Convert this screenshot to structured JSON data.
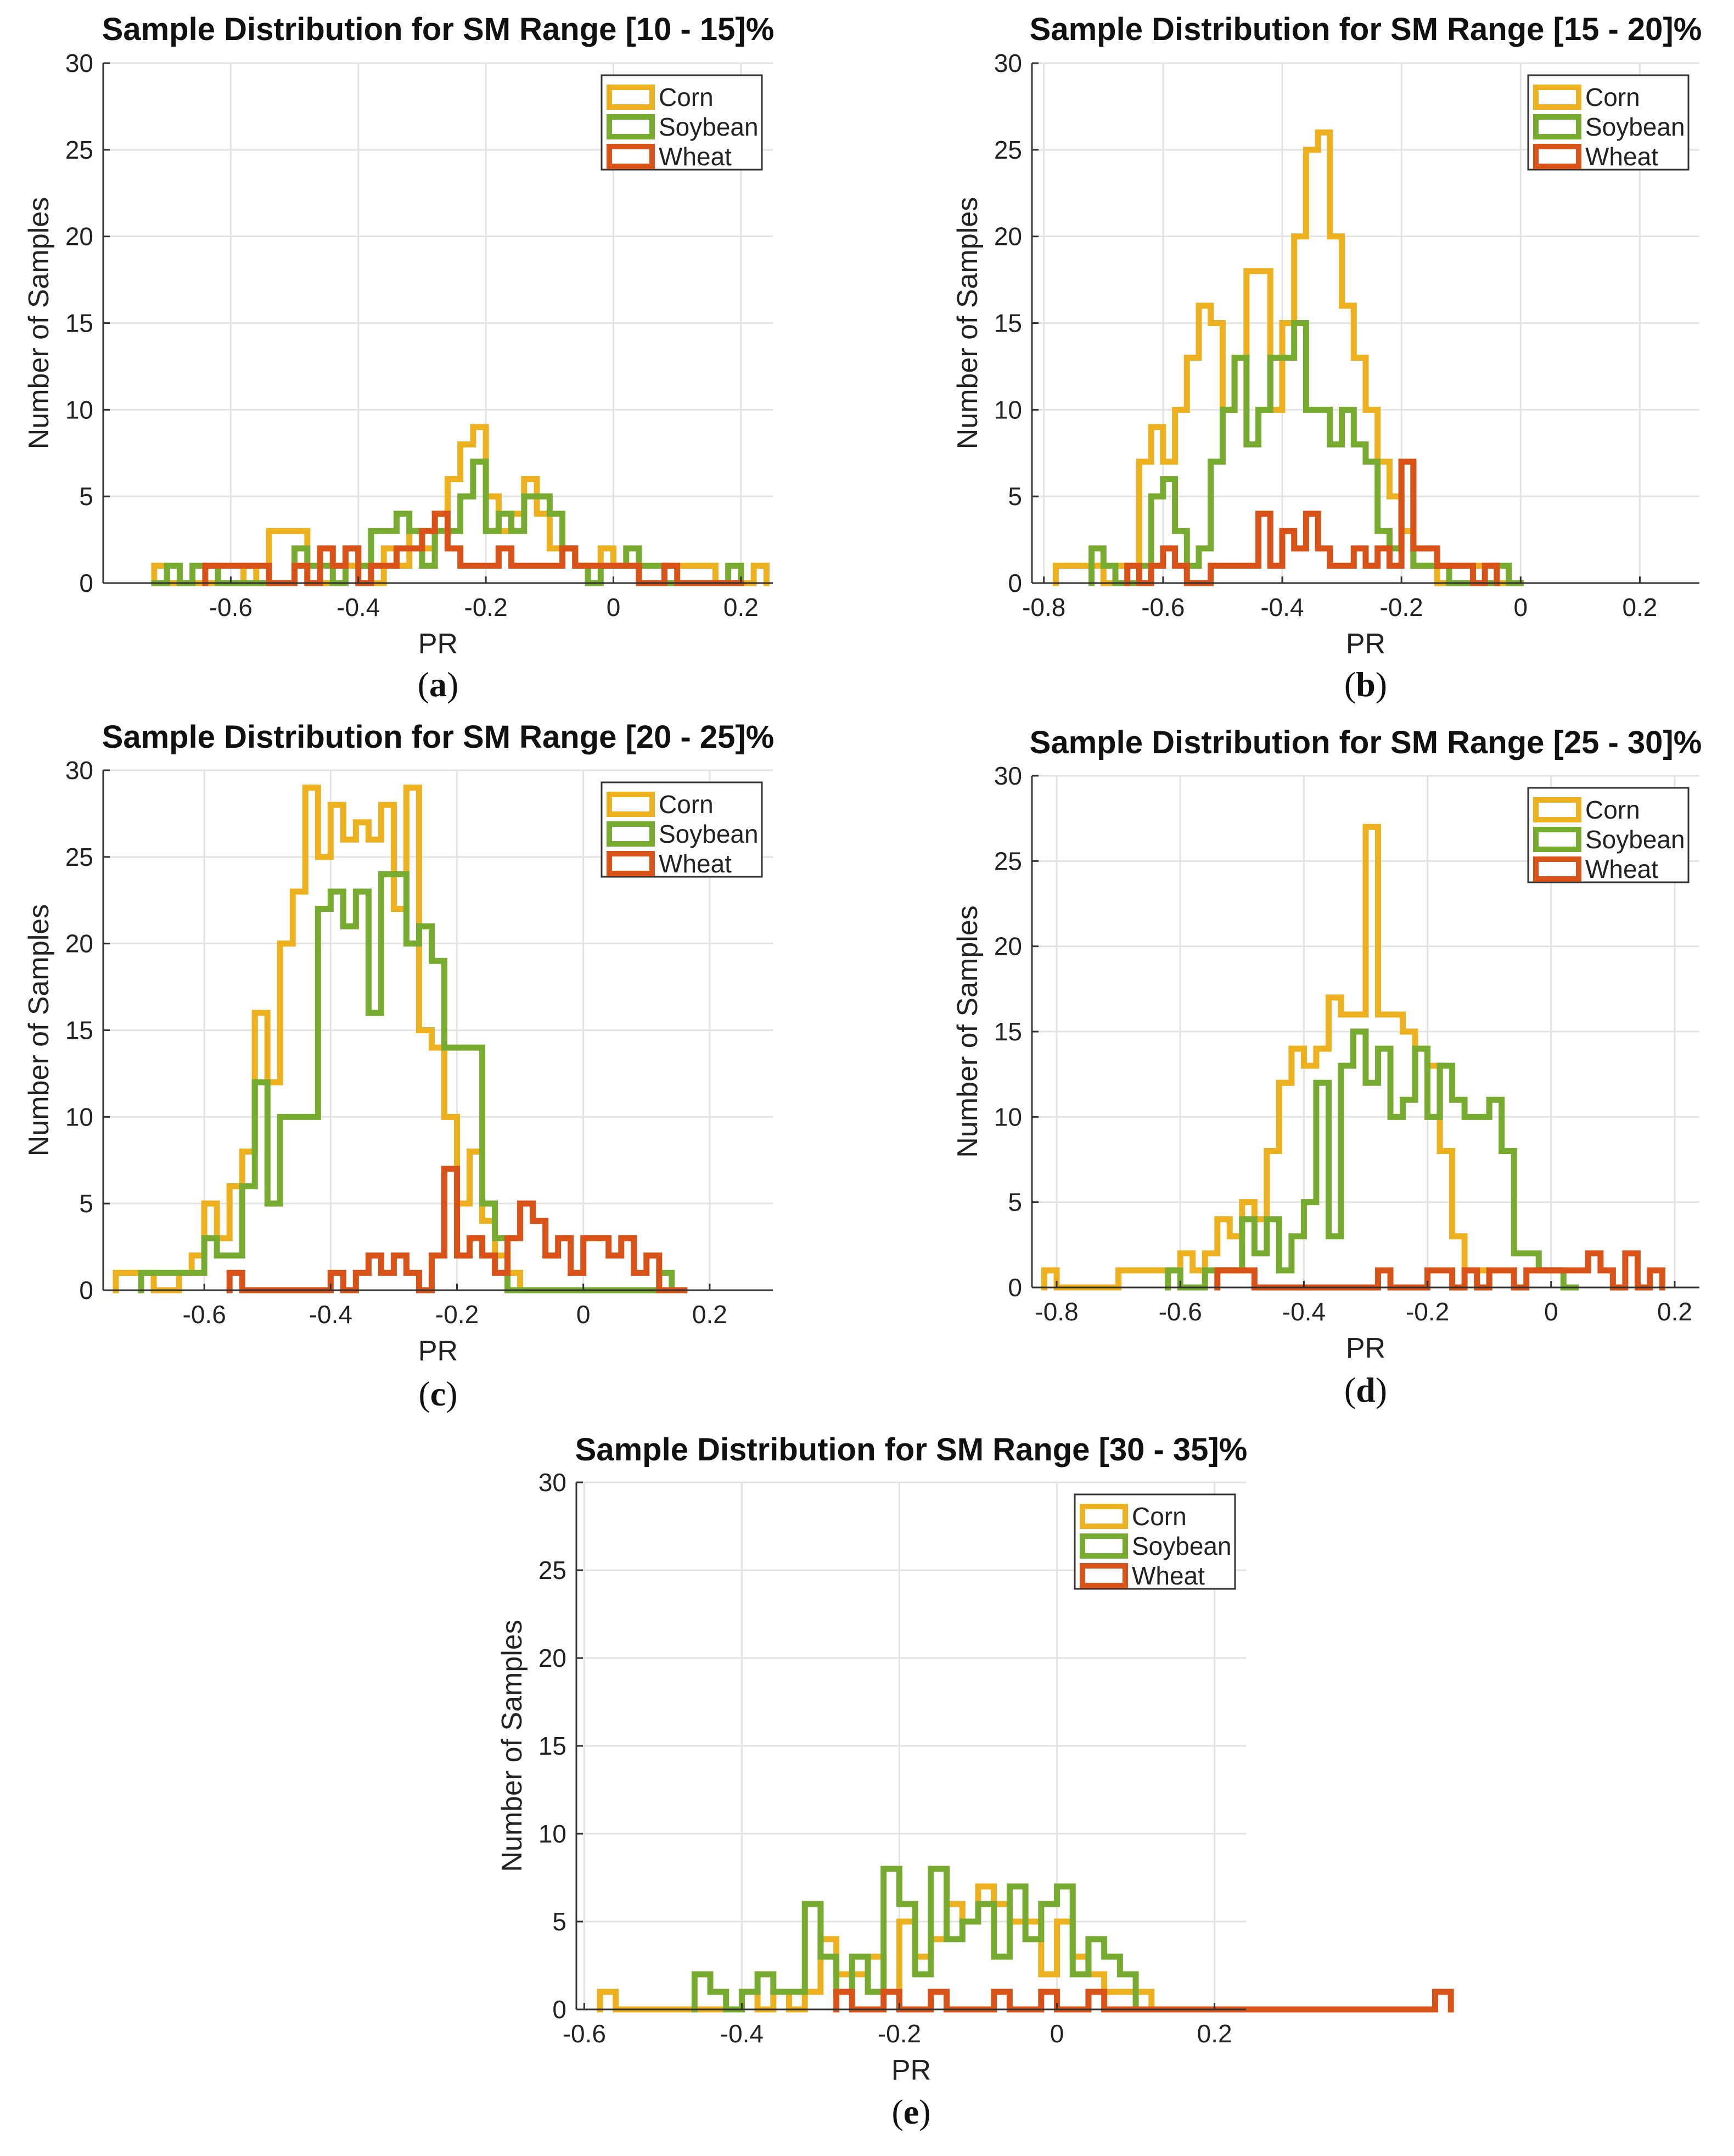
{
  "colors": {
    "corn": "#EDB120",
    "soybean": "#77AC30",
    "wheat": "#D95319"
  },
  "chart_data": [
    {
      "type": "histogram",
      "panel": "a",
      "caption_letter": "a",
      "title": "Sample Distribution for SM Range [10 - 15]%",
      "xlabel": "PR",
      "ylabel": "Number of Samples",
      "xlim": [
        -0.8,
        0.25
      ],
      "ylim": [
        0,
        30
      ],
      "xticks": [
        -0.6,
        -0.4,
        -0.2,
        0,
        0.2
      ],
      "xtick_labels": [
        "-0.6",
        "-0.4",
        "-0.2",
        "0",
        "0.2"
      ],
      "yticks": [
        0,
        5,
        10,
        15,
        20,
        25,
        30
      ],
      "ytick_labels": [
        "0",
        "5",
        "10",
        "15",
        "20",
        "25",
        "30"
      ],
      "legend": [
        "Corn",
        "Soybean",
        "Wheat"
      ],
      "series": [
        {
          "name": "Corn",
          "bin_start": -0.72,
          "bin_width": 0.02,
          "values": [
            1,
            0,
            0,
            0,
            0,
            0,
            0,
            1,
            0,
            3,
            3,
            3,
            0,
            0,
            0,
            1,
            1,
            0,
            2,
            1,
            3,
            2,
            4,
            6,
            8,
            9,
            5,
            3,
            4,
            6,
            4,
            2,
            2,
            1,
            1,
            2,
            1,
            1,
            0,
            0,
            1,
            1,
            1,
            1,
            0,
            0,
            0,
            1
          ]
        },
        {
          "name": "Soybean",
          "bin_start": -0.72,
          "bin_width": 0.02,
          "values": [
            0,
            1,
            0,
            1,
            1,
            0,
            0,
            0,
            0,
            0,
            0,
            2,
            1,
            1,
            0,
            2,
            1,
            3,
            3,
            4,
            3,
            1,
            3,
            3,
            5,
            7,
            3,
            4,
            3,
            5,
            5,
            4,
            2,
            1,
            0,
            1,
            1,
            2,
            1,
            1,
            0,
            0,
            0,
            0,
            0,
            1
          ]
        },
        {
          "name": "Wheat",
          "bin_start": -0.64,
          "bin_width": 0.02,
          "values": [
            1,
            1,
            1,
            1,
            1,
            0,
            0,
            1,
            0,
            2,
            1,
            2,
            0,
            1,
            1,
            2,
            2,
            3,
            4,
            2,
            1,
            1,
            1,
            2,
            1,
            1,
            1,
            1,
            2,
            1,
            1,
            1,
            1,
            1,
            0,
            0,
            1,
            0,
            0,
            0,
            0,
            0
          ]
        }
      ]
    },
    {
      "type": "histogram",
      "panel": "b",
      "caption_letter": "b",
      "title": "Sample Distribution for SM Range [15 - 20]%",
      "xlabel": "PR",
      "ylabel": "Number of Samples",
      "xlim": [
        -0.82,
        0.3
      ],
      "ylim": [
        0,
        30
      ],
      "xticks": [
        -0.8,
        -0.6,
        -0.4,
        -0.2,
        0,
        0.2
      ],
      "xtick_labels": [
        "-0.8",
        "-0.6",
        "-0.4",
        "-0.2",
        "0",
        "0.2"
      ],
      "yticks": [
        0,
        5,
        10,
        15,
        20,
        25,
        30
      ],
      "ytick_labels": [
        "0",
        "5",
        "10",
        "15",
        "20",
        "25",
        "30"
      ],
      "legend": [
        "Corn",
        "Soybean",
        "Wheat"
      ],
      "series": [
        {
          "name": "Corn",
          "bin_start": -0.78,
          "bin_width": 0.02,
          "values": [
            1,
            1,
            1,
            1,
            0,
            1,
            1,
            7,
            9,
            7,
            10,
            13,
            16,
            15,
            10,
            13,
            18,
            18,
            10,
            15,
            20,
            25,
            26,
            20,
            16,
            13,
            10,
            7,
            5,
            3,
            1,
            1,
            0,
            1,
            1,
            1,
            1,
            0
          ]
        },
        {
          "name": "Soybean",
          "bin_start": -0.72,
          "bin_width": 0.02,
          "values": [
            2,
            1,
            0,
            0,
            1,
            5,
            6,
            3,
            1,
            2,
            7,
            10,
            13,
            8,
            10,
            13,
            13,
            15,
            10,
            10,
            8,
            10,
            8,
            7,
            3,
            2,
            7,
            1,
            1,
            1,
            0,
            0,
            0,
            0,
            1,
            0
          ]
        },
        {
          "name": "Wheat",
          "bin_start": -0.66,
          "bin_width": 0.02,
          "values": [
            1,
            0,
            1,
            2,
            1,
            0,
            0,
            1,
            1,
            1,
            1,
            4,
            1,
            3,
            2,
            4,
            2,
            1,
            1,
            2,
            1,
            2,
            1,
            7,
            2,
            2,
            1,
            1,
            1,
            0,
            1
          ]
        }
      ]
    },
    {
      "type": "histogram",
      "panel": "c",
      "caption_letter": "c",
      "title": "Sample Distribution for SM Range [20 - 25]%",
      "xlabel": "PR",
      "ylabel": "Number of Samples",
      "xlim": [
        -0.76,
        0.3
      ],
      "ylim": [
        0,
        30
      ],
      "xticks": [
        -0.6,
        -0.4,
        -0.2,
        0,
        0.2
      ],
      "xtick_labels": [
        "-0.6",
        "-0.4",
        "-0.2",
        "0",
        "0.2"
      ],
      "yticks": [
        0,
        5,
        10,
        15,
        20,
        25,
        30
      ],
      "ytick_labels": [
        "0",
        "5",
        "10",
        "15",
        "20",
        "25",
        "30"
      ],
      "legend": [
        "Corn",
        "Soybean",
        "Wheat"
      ],
      "series": [
        {
          "name": "Corn",
          "bin_start": -0.74,
          "bin_width": 0.02,
          "values": [
            1,
            1,
            1,
            0,
            0,
            1,
            2,
            5,
            3,
            6,
            8,
            16,
            12,
            20,
            23,
            29,
            25,
            28,
            26,
            27,
            26,
            28,
            22,
            29,
            15,
            14,
            10,
            5,
            8,
            4,
            2,
            1,
            0,
            0,
            0,
            0
          ]
        },
        {
          "name": "Soybean",
          "bin_start": -0.7,
          "bin_width": 0.02,
          "values": [
            1,
            1,
            1,
            1,
            1,
            3,
            2,
            2,
            6,
            12,
            5,
            10,
            10,
            10,
            22,
            23,
            21,
            23,
            16,
            24,
            24,
            20,
            21,
            19,
            14,
            14,
            14,
            5,
            3,
            0,
            0,
            0,
            0,
            0,
            0,
            0,
            0,
            0,
            0,
            0,
            0,
            1
          ]
        },
        {
          "name": "Wheat",
          "bin_start": -0.56,
          "bin_width": 0.02,
          "values": [
            1,
            0,
            0,
            0,
            0,
            0,
            0,
            0,
            1,
            0,
            1,
            2,
            1,
            2,
            1,
            0,
            2,
            7,
            2,
            3,
            2,
            1,
            3,
            5,
            4,
            2,
            3,
            1,
            3,
            3,
            2,
            3,
            1,
            2,
            0,
            0
          ]
        }
      ]
    },
    {
      "type": "histogram",
      "panel": "d",
      "caption_letter": "d",
      "title": "Sample Distribution for SM Range [25 - 30]%",
      "xlabel": "PR",
      "ylabel": "Number of Samples",
      "xlim": [
        -0.84,
        0.24
      ],
      "ylim": [
        0,
        30
      ],
      "xticks": [
        -0.8,
        -0.6,
        -0.4,
        -0.2,
        0,
        0.2
      ],
      "xtick_labels": [
        "-0.8",
        "-0.6",
        "-0.4",
        "-0.2",
        "0",
        "0.2"
      ],
      "yticks": [
        0,
        5,
        10,
        15,
        20,
        25,
        30
      ],
      "ytick_labels": [
        "0",
        "5",
        "10",
        "15",
        "20",
        "25",
        "30"
      ],
      "legend": [
        "Corn",
        "Soybean",
        "Wheat"
      ],
      "series": [
        {
          "name": "Corn",
          "bin_start": -0.82,
          "bin_width": 0.02,
          "values": [
            1,
            0,
            0,
            0,
            0,
            0,
            1,
            1,
            1,
            1,
            1,
            2,
            1,
            2,
            4,
            3,
            5,
            4,
            8,
            12,
            14,
            13,
            14,
            17,
            16,
            16,
            27,
            16,
            16,
            15,
            14,
            13,
            8,
            3,
            1,
            1
          ]
        },
        {
          "name": "Soybean",
          "bin_start": -0.62,
          "bin_width": 0.02,
          "values": [
            1,
            0,
            0,
            1,
            1,
            1,
            4,
            2,
            4,
            1,
            3,
            5,
            12,
            3,
            13,
            15,
            12,
            14,
            10,
            11,
            14,
            10,
            13,
            11,
            10,
            10,
            11,
            8,
            2,
            2,
            1,
            1,
            0
          ]
        },
        {
          "name": "Wheat",
          "bin_start": -0.54,
          "bin_width": 0.02,
          "values": [
            1,
            1,
            1,
            0,
            0,
            0,
            0,
            0,
            0,
            0,
            0,
            0,
            0,
            1,
            0,
            0,
            0,
            1,
            1,
            0,
            1,
            0,
            1,
            1,
            0,
            1,
            1,
            1,
            1,
            1,
            2,
            1,
            0,
            2,
            0,
            1
          ]
        }
      ]
    },
    {
      "type": "histogram",
      "panel": "e",
      "caption_letter": "e",
      "title": "Sample Distribution for SM Range [30 - 35]%",
      "xlabel": "PR",
      "ylabel": "Number of Samples",
      "xlim": [
        -0.61,
        0.24
      ],
      "ylim": [
        0,
        30
      ],
      "xticks": [
        -0.6,
        -0.4,
        -0.2,
        0,
        0.2
      ],
      "xtick_labels": [
        "-0.6",
        "-0.4",
        "-0.2",
        "0",
        "0.2"
      ],
      "yticks": [
        0,
        5,
        10,
        15,
        20,
        25,
        30
      ],
      "ytick_labels": [
        "0",
        "5",
        "10",
        "15",
        "20",
        "25",
        "30"
      ],
      "legend": [
        "Corn",
        "Soybean",
        "Wheat"
      ],
      "series": [
        {
          "name": "Corn",
          "bin_start": -0.58,
          "bin_width": 0.02,
          "values": [
            1,
            0,
            0,
            0,
            0,
            0,
            0,
            0,
            0,
            1,
            0,
            1,
            0,
            1,
            4,
            2,
            2,
            3,
            1,
            5,
            3,
            4,
            6,
            5,
            7,
            6,
            5,
            5,
            2,
            5,
            3,
            2,
            1,
            1,
            1,
            0
          ]
        },
        {
          "name": "Soybean",
          "bin_start": -0.46,
          "bin_width": 0.02,
          "values": [
            2,
            1,
            0,
            1,
            2,
            1,
            1,
            6,
            3,
            1,
            3,
            1,
            8,
            6,
            2,
            8,
            4,
            5,
            6,
            3,
            7,
            4,
            6,
            7,
            2,
            4,
            3,
            2,
            0
          ]
        },
        {
          "name": "Wheat",
          "bin_start": -0.28,
          "bin_width": 0.02,
          "values": [
            1,
            0,
            0,
            1,
            0,
            0,
            1,
            0,
            0,
            0,
            1,
            0,
            0,
            1,
            0,
            0,
            1,
            0,
            0,
            0,
            0,
            0,
            0,
            0,
            0,
            0,
            0,
            0,
            0,
            0,
            0,
            0,
            0,
            0,
            0,
            0,
            0,
            0,
            1
          ]
        }
      ]
    }
  ]
}
